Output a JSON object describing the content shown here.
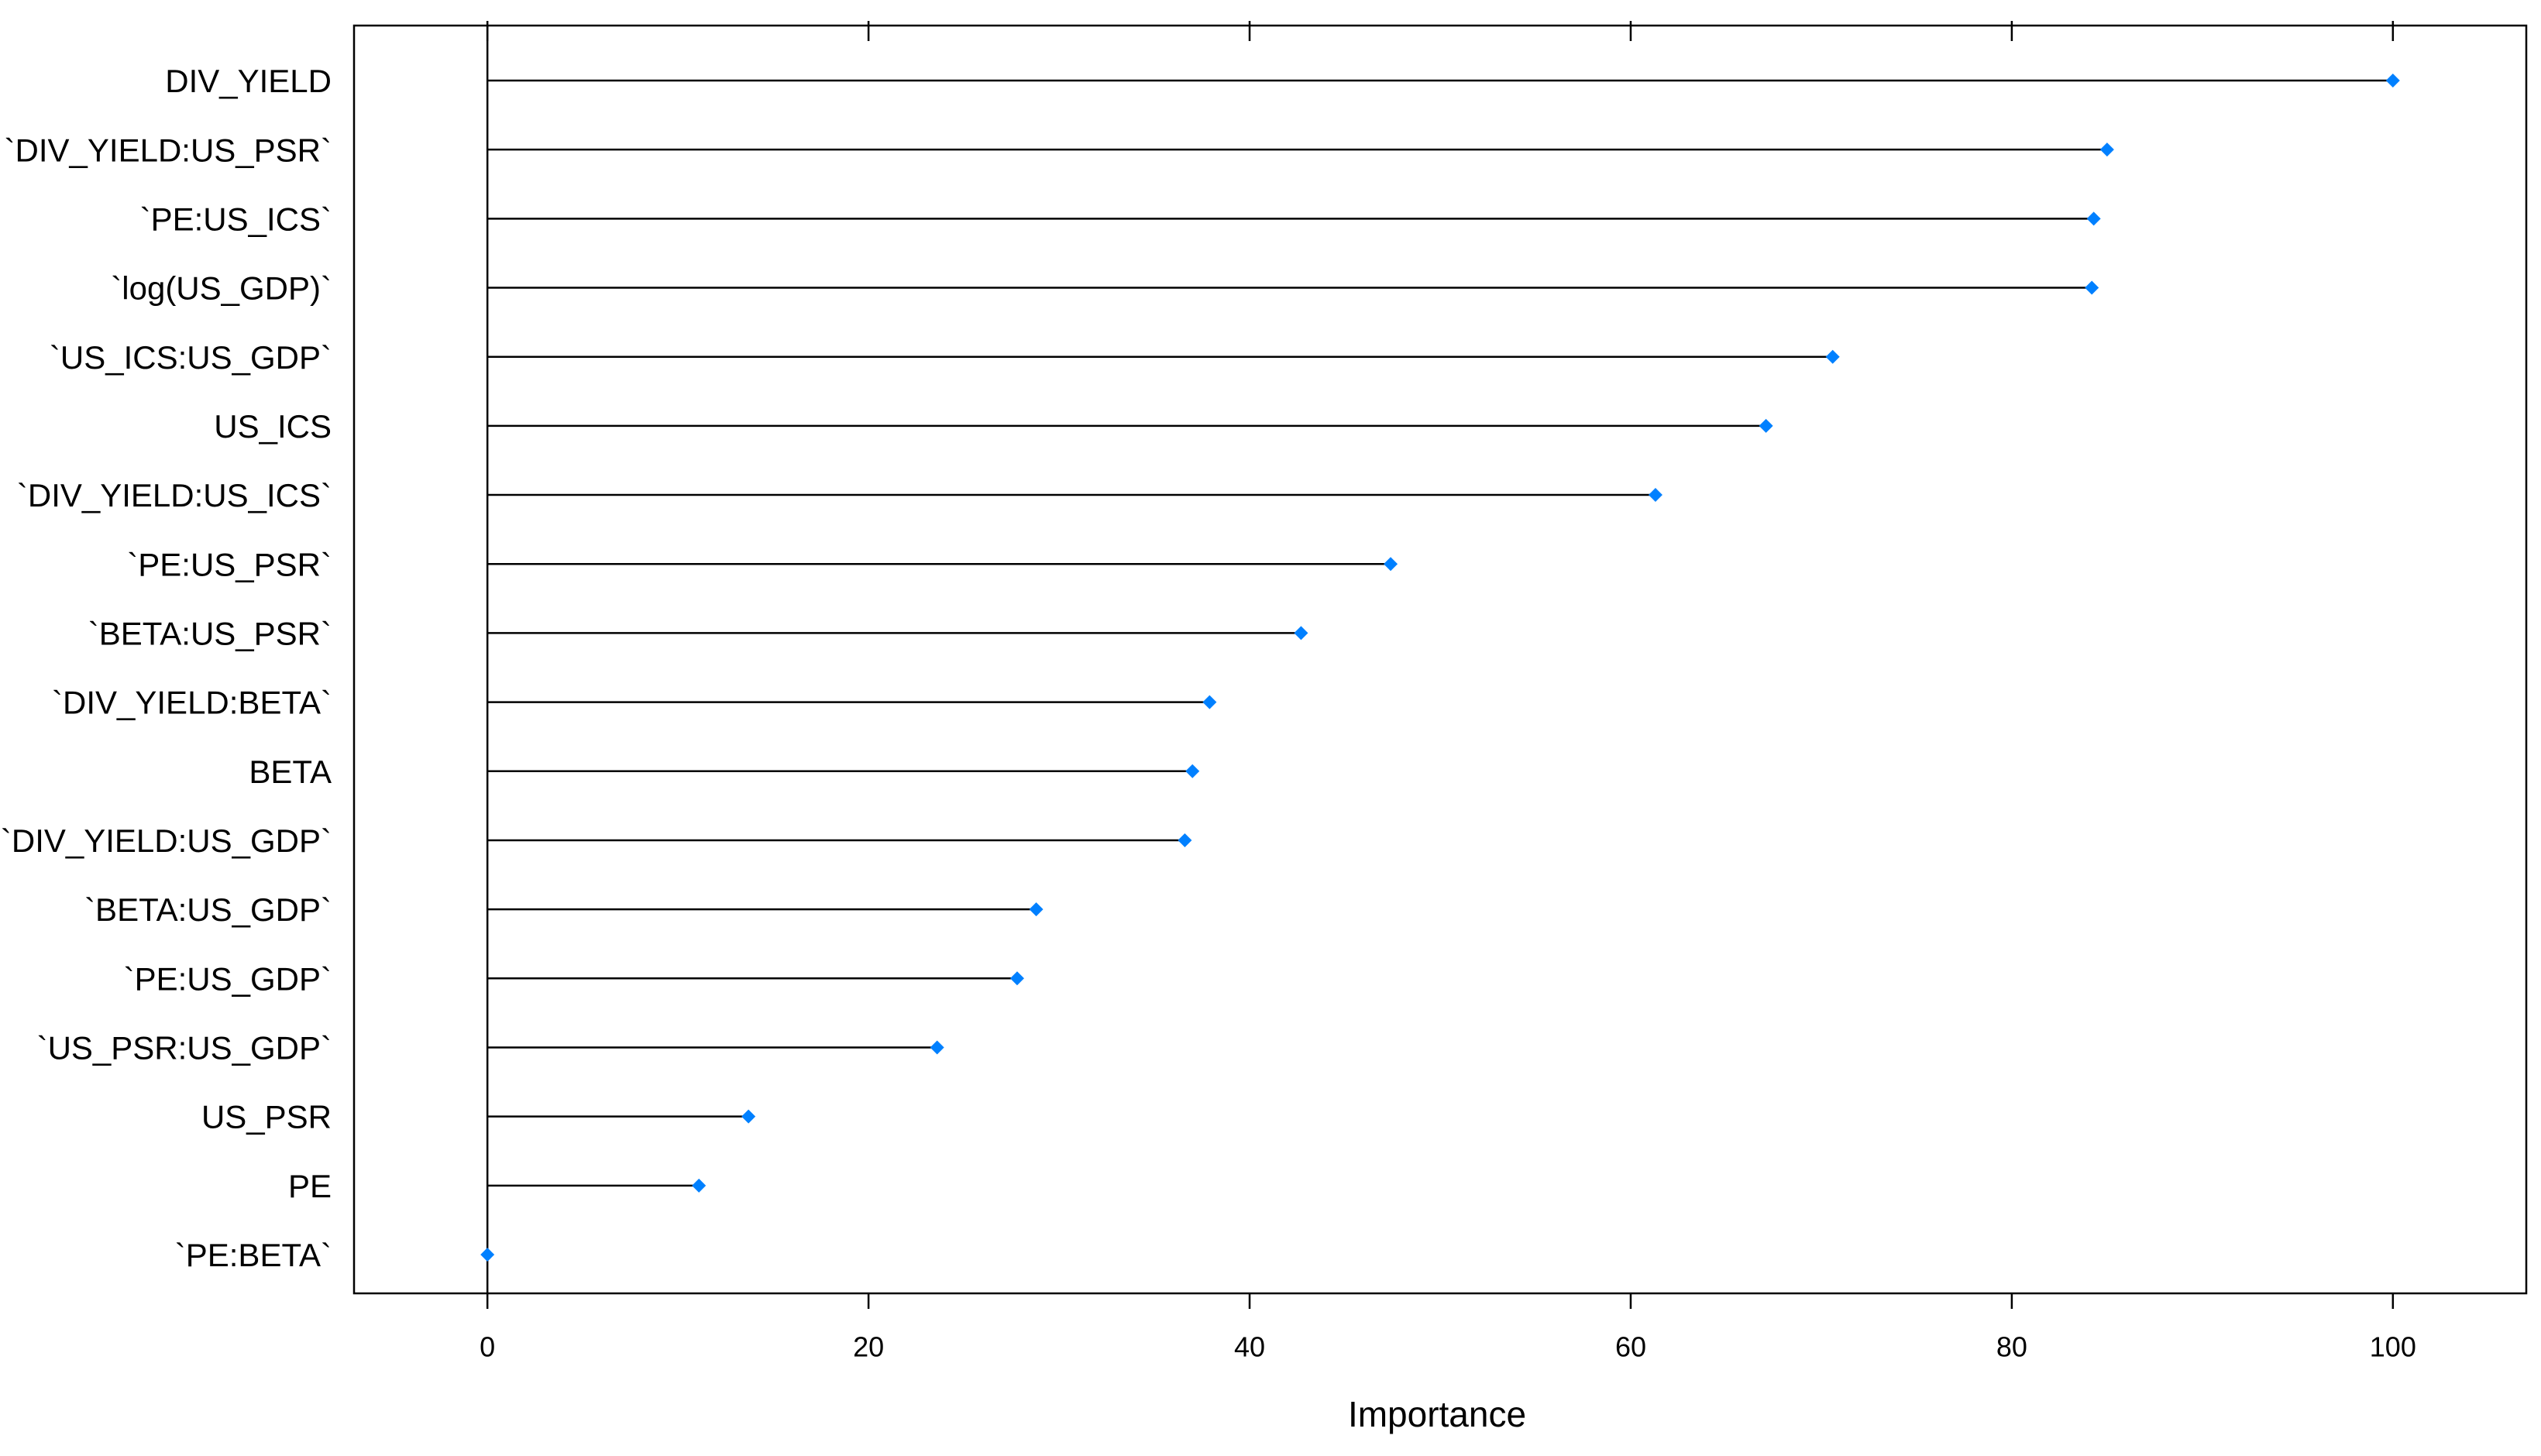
{
  "chart_data": {
    "type": "dotplot",
    "x_label": "Importance",
    "categories": [
      "DIV_YIELD",
      "`DIV_YIELD:US_PSR`",
      "`PE:US_ICS`",
      "`log(US_GDP)`",
      "`US_ICS:US_GDP`",
      "US_ICS",
      "`DIV_YIELD:US_ICS`",
      "`PE:US_PSR`",
      "`BETA:US_PSR`",
      "`DIV_YIELD:BETA`",
      "BETA",
      "`DIV_YIELD:US_GDP`",
      "`BETA:US_GDP`",
      "`PE:US_GDP`",
      "`US_PSR:US_GDP`",
      "US_PSR",
      "PE",
      "`PE:BETA`"
    ],
    "values": [
      100,
      85.0,
      84.3,
      84.2,
      70.6,
      67.1,
      61.3,
      47.4,
      42.7,
      37.9,
      37.0,
      36.6,
      28.8,
      27.8,
      23.6,
      13.7,
      11.1,
      0
    ],
    "color": "#0080ff",
    "xlim": [
      -7,
      107
    ],
    "xticks": [
      0,
      20,
      40,
      60,
      80,
      100
    ]
  }
}
